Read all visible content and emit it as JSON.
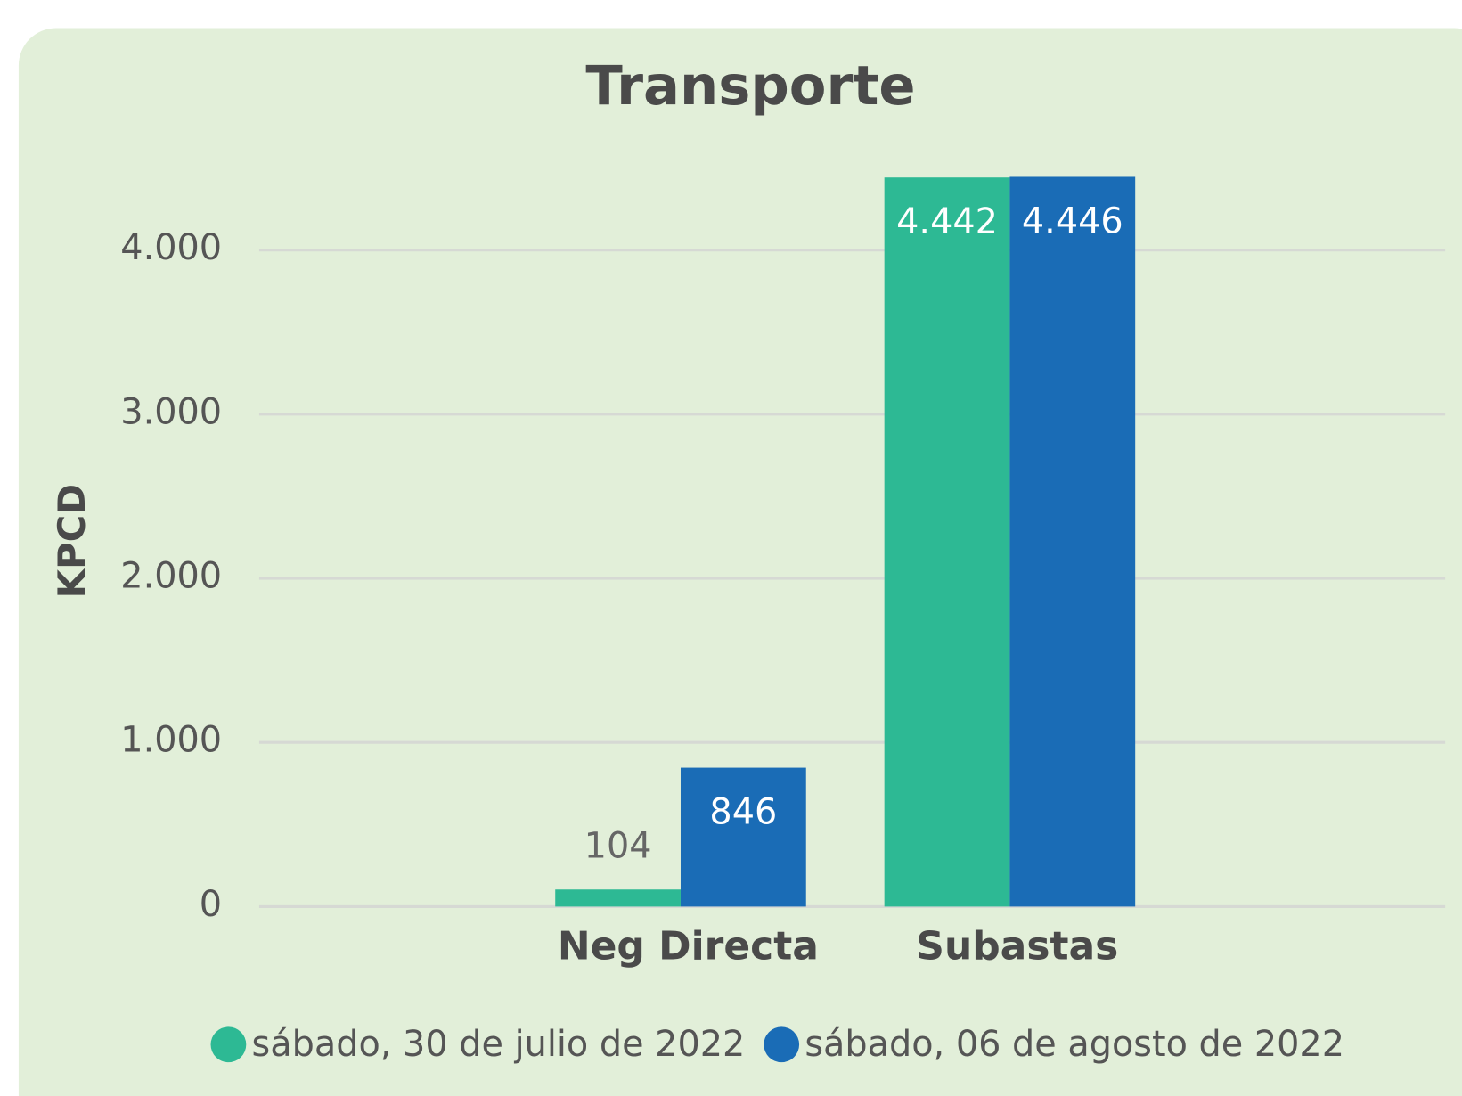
{
  "chart_data": {
    "type": "bar",
    "title": "Transporte",
    "y_label": "KPCD",
    "categories": [
      "Neg Directa",
      "Subastas"
    ],
    "series": [
      {
        "name": "sábado, 30 de julio de 2022",
        "color": "#2db994",
        "values": [
          104,
          4442
        ],
        "value_labels": [
          "104",
          "4.442"
        ]
      },
      {
        "name": "sábado, 06 de agosto de 2022",
        "color": "#1a6cb6",
        "values": [
          846,
          4446
        ],
        "value_labels": [
          "846",
          "4.446"
        ]
      }
    ],
    "ylim": [
      0,
      4500
    ],
    "yticks": [
      0,
      {
        "value": 1000,
        "label": "1.000"
      },
      {
        "value": 2000,
        "label": "2.000"
      },
      {
        "value": 3000,
        "label": "3.000"
      },
      {
        "value": 4000,
        "label": "4.000"
      }
    ],
    "grid": true,
    "legend": "bottom"
  }
}
